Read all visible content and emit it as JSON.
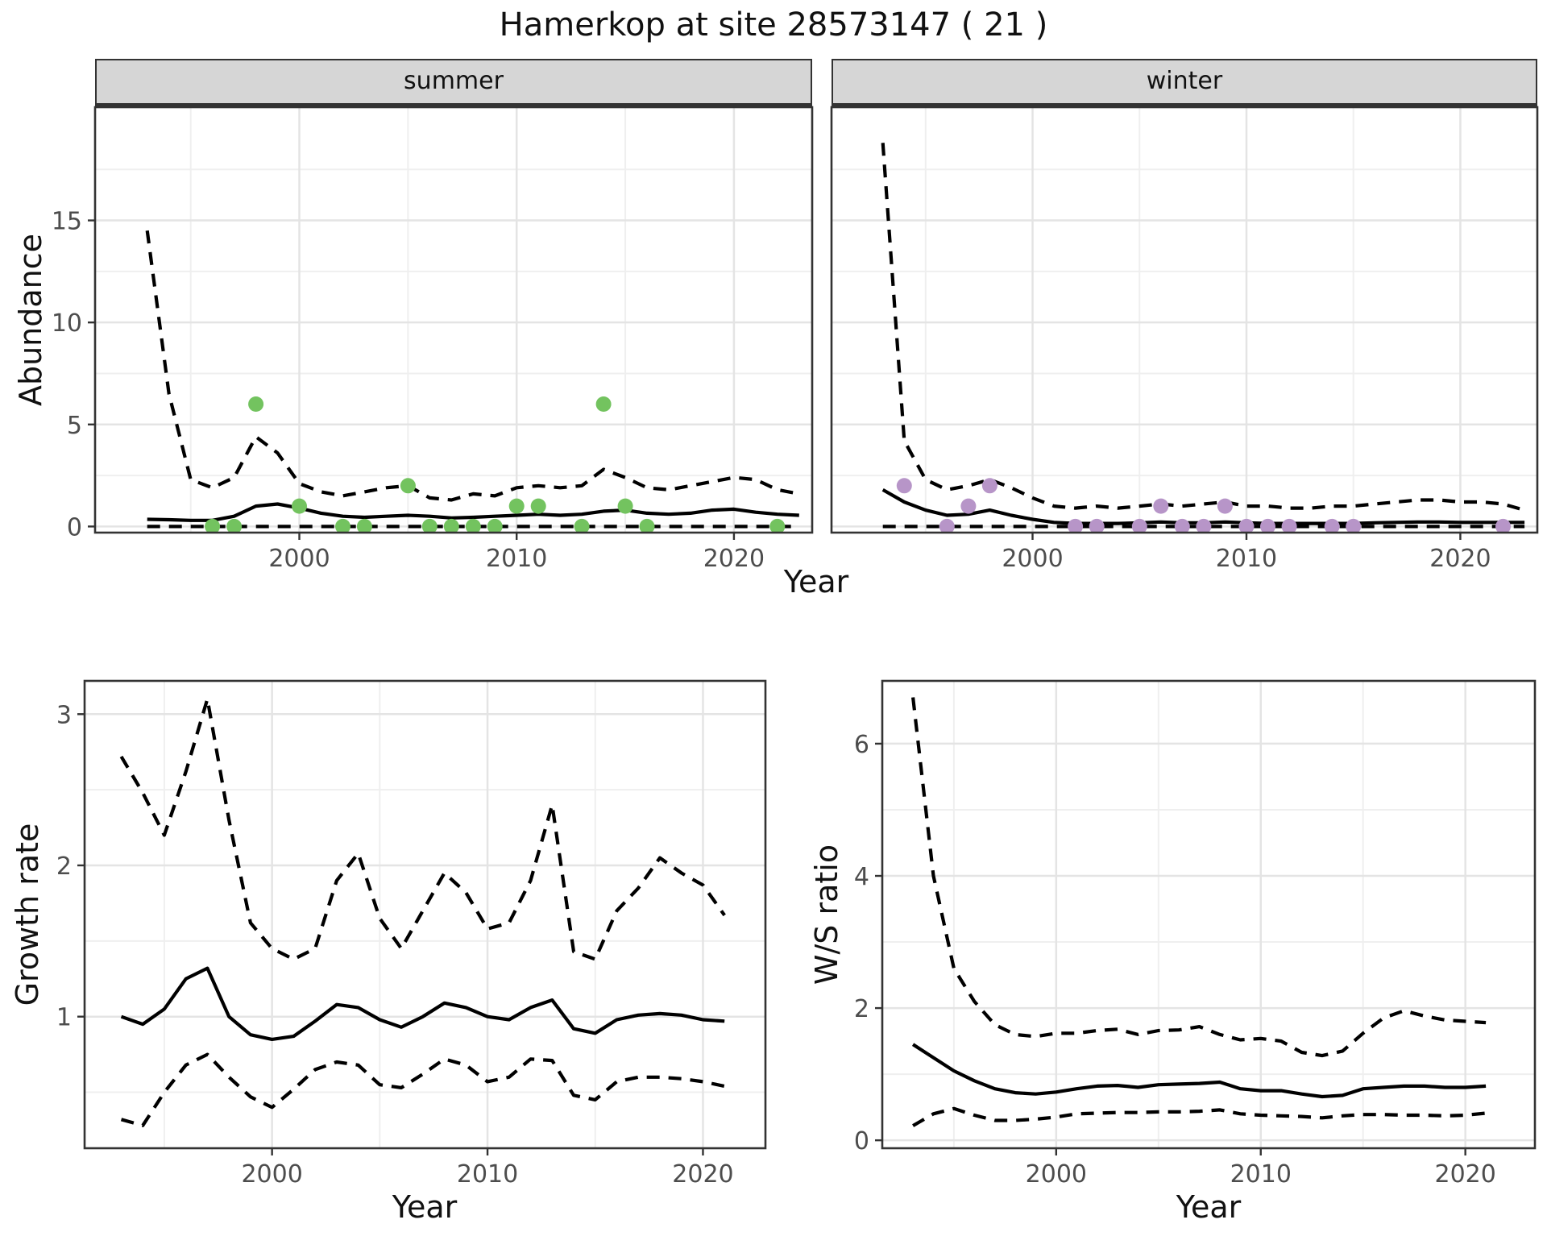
{
  "title": "Hamerkop at site 28573147 ( 21 )",
  "axis_labels": {
    "y_top": "Abundance",
    "x_top": "Year",
    "y_bottom_left": "Growth rate",
    "x_bottom_left": "Year",
    "y_bottom_right": "W/S ratio",
    "x_bottom_right": "Year"
  },
  "facets": {
    "left": "summer",
    "right": "winter"
  },
  "colors": {
    "summer_point": "#73c35f",
    "winter_point": "#b795c8",
    "line": "#000000",
    "grid_major": "#e4e4e4",
    "grid_minor": "#efefef",
    "panel_bg": "#ffffff",
    "panel_border": "#333333",
    "strip_bg": "#d6d6d6",
    "axis_text": "#4d4d4d"
  },
  "chart_data": [
    {
      "id": "abundance-summer",
      "type": "line",
      "facet_label": "summer",
      "xlabel": "Year",
      "ylabel": "Abundance",
      "xlim": [
        1990.6,
        2023.6
      ],
      "ylim": [
        -0.3,
        20.55
      ],
      "x_ticks": {
        "major": [
          2000,
          2010,
          2020
        ],
        "minor": [
          1995,
          2005,
          2015
        ],
        "labels": [
          "2000",
          "2010",
          "2020"
        ]
      },
      "y_ticks": {
        "major": [
          0,
          5,
          10,
          15
        ],
        "minor": [
          2.5,
          7.5,
          12.5,
          17.5
        ],
        "labels": [
          "0",
          "5",
          "10",
          "15"
        ],
        "show_labels": true
      },
      "x": [
        1993,
        1994,
        1995,
        1996,
        1997,
        1998,
        1999,
        2000,
        2001,
        2002,
        2003,
        2004,
        2005,
        2006,
        2007,
        2008,
        2009,
        2010,
        2011,
        2012,
        2013,
        2014,
        2015,
        2016,
        2017,
        2018,
        2019,
        2020,
        2021,
        2022,
        2023
      ],
      "series": [
        {
          "name": "lower_95ci",
          "line": "dashed",
          "values": [
            0,
            0,
            0,
            0,
            0,
            0,
            0,
            0,
            0,
            0,
            0,
            0,
            0,
            0,
            0,
            0,
            0,
            0,
            0,
            0,
            0,
            0,
            0,
            0,
            0,
            0,
            0,
            0,
            0,
            0,
            0
          ]
        },
        {
          "name": "upper_95ci",
          "line": "dashed",
          "values": [
            14.5,
            6.5,
            2.3,
            1.9,
            2.4,
            4.4,
            3.6,
            2.1,
            1.7,
            1.5,
            1.7,
            1.9,
            2.0,
            1.4,
            1.3,
            1.6,
            1.5,
            1.9,
            2.0,
            1.9,
            2.0,
            2.8,
            2.4,
            1.9,
            1.8,
            2.0,
            2.2,
            2.4,
            2.3,
            1.8,
            1.6
          ]
        },
        {
          "name": "median",
          "line": "solid",
          "values": [
            0.35,
            0.33,
            0.3,
            0.3,
            0.5,
            1.0,
            1.1,
            0.9,
            0.65,
            0.5,
            0.45,
            0.5,
            0.55,
            0.5,
            0.42,
            0.45,
            0.5,
            0.55,
            0.6,
            0.55,
            0.6,
            0.75,
            0.8,
            0.65,
            0.6,
            0.65,
            0.8,
            0.85,
            0.7,
            0.6,
            0.55
          ]
        }
      ],
      "points": {
        "name": "observed-abundance-summer",
        "color": "#73c35f",
        "data": [
          [
            1996,
            0
          ],
          [
            1997,
            0
          ],
          [
            1998,
            6
          ],
          [
            2000,
            1
          ],
          [
            2002,
            0
          ],
          [
            2003,
            0
          ],
          [
            2005,
            2
          ],
          [
            2006,
            0
          ],
          [
            2007,
            0
          ],
          [
            2008,
            0
          ],
          [
            2009,
            0
          ],
          [
            2010,
            1
          ],
          [
            2011,
            1
          ],
          [
            2013,
            0
          ],
          [
            2014,
            6
          ],
          [
            2015,
            1
          ],
          [
            2016,
            0
          ],
          [
            2022,
            0
          ]
        ]
      }
    },
    {
      "id": "abundance-winter",
      "type": "line",
      "facet_label": "winter",
      "xlabel": "Year",
      "ylabel": "Abundance",
      "xlim": [
        1990.6,
        2023.6
      ],
      "ylim": [
        -0.3,
        20.55
      ],
      "x_ticks": {
        "major": [
          2000,
          2010,
          2020
        ],
        "minor": [
          1995,
          2005,
          2015
        ],
        "labels": [
          "2000",
          "2010",
          "2020"
        ]
      },
      "y_ticks": {
        "major": [
          0,
          5,
          10,
          15
        ],
        "minor": [
          2.5,
          7.5,
          12.5,
          17.5
        ],
        "labels": [
          "0",
          "5",
          "10",
          "15"
        ],
        "show_labels": false
      },
      "x": [
        1993,
        1994,
        1995,
        1996,
        1997,
        1998,
        1999,
        2000,
        2001,
        2002,
        2003,
        2004,
        2005,
        2006,
        2007,
        2008,
        2009,
        2010,
        2011,
        2012,
        2013,
        2014,
        2015,
        2016,
        2017,
        2018,
        2019,
        2020,
        2021,
        2022,
        2023
      ],
      "series": [
        {
          "name": "lower_95ci",
          "line": "dashed",
          "values": [
            0,
            0,
            0,
            0,
            0,
            0,
            0,
            0,
            0,
            0,
            0,
            0,
            0,
            0,
            0,
            0,
            0,
            0,
            0,
            0,
            0,
            0,
            0,
            0,
            0,
            0,
            0,
            0,
            0,
            0,
            0
          ]
        },
        {
          "name": "upper_95ci",
          "line": "dashed",
          "values": [
            18.8,
            4.2,
            2.3,
            1.8,
            2.0,
            2.3,
            1.9,
            1.4,
            1.0,
            0.9,
            1.0,
            0.9,
            1.0,
            1.1,
            1.0,
            1.1,
            1.2,
            1.0,
            1.0,
            0.9,
            0.9,
            1.0,
            1.0,
            1.1,
            1.2,
            1.3,
            1.3,
            1.2,
            1.2,
            1.1,
            0.8
          ]
        },
        {
          "name": "median",
          "line": "solid",
          "values": [
            1.8,
            1.2,
            0.8,
            0.55,
            0.6,
            0.8,
            0.55,
            0.35,
            0.2,
            0.15,
            0.15,
            0.15,
            0.18,
            0.22,
            0.18,
            0.18,
            0.22,
            0.18,
            0.15,
            0.15,
            0.15,
            0.15,
            0.15,
            0.18,
            0.2,
            0.22,
            0.22,
            0.2,
            0.2,
            0.2,
            0.2
          ]
        }
      ],
      "points": {
        "name": "observed-abundance-winter",
        "color": "#b795c8",
        "data": [
          [
            1994,
            2
          ],
          [
            1996,
            0
          ],
          [
            1997,
            1
          ],
          [
            1998,
            2
          ],
          [
            2002,
            0
          ],
          [
            2003,
            0
          ],
          [
            2005,
            0
          ],
          [
            2006,
            1
          ],
          [
            2007,
            0
          ],
          [
            2008,
            0
          ],
          [
            2009,
            1
          ],
          [
            2010,
            0
          ],
          [
            2011,
            0
          ],
          [
            2012,
            0
          ],
          [
            2014,
            0
          ],
          [
            2015,
            0
          ],
          [
            2022,
            0
          ]
        ]
      }
    },
    {
      "id": "growth-rate",
      "type": "line",
      "xlabel": "Year",
      "ylabel": "Growth rate",
      "xlim": [
        1991.3,
        2022.9
      ],
      "ylim": [
        0.13,
        3.22
      ],
      "x_ticks": {
        "major": [
          2000,
          2010,
          2020
        ],
        "minor": [
          1995,
          2005,
          2015
        ],
        "labels": [
          "2000",
          "2010",
          "2020"
        ]
      },
      "y_ticks": {
        "major": [
          1,
          2,
          3
        ],
        "minor": [
          0.5,
          1.5,
          2.5
        ],
        "labels": [
          "1",
          "2",
          "3"
        ],
        "show_labels": true
      },
      "x": [
        1993,
        1994,
        1995,
        1996,
        1997,
        1998,
        1999,
        2000,
        2001,
        2002,
        2003,
        2004,
        2005,
        2006,
        2007,
        2008,
        2009,
        2010,
        2011,
        2012,
        2013,
        2014,
        2015,
        2016,
        2017,
        2018,
        2019,
        2020,
        2021
      ],
      "series": [
        {
          "name": "lower_95ci",
          "line": "dashed",
          "values": [
            0.32,
            0.28,
            0.5,
            0.68,
            0.75,
            0.6,
            0.47,
            0.4,
            0.52,
            0.65,
            0.7,
            0.68,
            0.55,
            0.53,
            0.62,
            0.72,
            0.68,
            0.57,
            0.6,
            0.72,
            0.71,
            0.48,
            0.45,
            0.57,
            0.6,
            0.6,
            0.59,
            0.57,
            0.54
          ]
        },
        {
          "name": "upper_95ci",
          "line": "dashed",
          "values": [
            2.72,
            2.48,
            2.2,
            2.62,
            3.1,
            2.3,
            1.62,
            1.45,
            1.38,
            1.45,
            1.9,
            2.08,
            1.65,
            1.45,
            1.7,
            1.95,
            1.82,
            1.58,
            1.62,
            1.9,
            2.4,
            1.43,
            1.38,
            1.7,
            1.85,
            2.05,
            1.95,
            1.87,
            1.67
          ]
        },
        {
          "name": "median",
          "line": "solid",
          "values": [
            1.0,
            0.95,
            1.05,
            1.25,
            1.32,
            1.0,
            0.88,
            0.85,
            0.87,
            0.97,
            1.08,
            1.06,
            0.98,
            0.93,
            1.0,
            1.09,
            1.06,
            1.0,
            0.98,
            1.06,
            1.11,
            0.92,
            0.89,
            0.98,
            1.01,
            1.02,
            1.01,
            0.98,
            0.97
          ]
        }
      ]
    },
    {
      "id": "ws-ratio",
      "type": "line",
      "xlabel": "Year",
      "ylabel": "W/S ratio",
      "xlim": [
        1991.5,
        2023.4
      ],
      "ylim": [
        -0.12,
        6.95
      ],
      "x_ticks": {
        "major": [
          2000,
          2010,
          2020
        ],
        "minor": [
          1995,
          2005,
          2015
        ],
        "labels": [
          "2000",
          "2010",
          "2020"
        ]
      },
      "y_ticks": {
        "major": [
          0,
          2,
          4,
          6
        ],
        "minor": [
          1,
          3,
          5
        ],
        "labels": [
          "0",
          "2",
          "4",
          "6"
        ],
        "show_labels": true
      },
      "x": [
        1993,
        1994,
        1995,
        1996,
        1997,
        1998,
        1999,
        2000,
        2001,
        2002,
        2003,
        2004,
        2005,
        2006,
        2007,
        2008,
        2009,
        2010,
        2011,
        2012,
        2013,
        2014,
        2015,
        2016,
        2017,
        2018,
        2019,
        2020,
        2021
      ],
      "series": [
        {
          "name": "lower_95ci",
          "line": "dashed",
          "values": [
            0.22,
            0.4,
            0.48,
            0.38,
            0.3,
            0.3,
            0.32,
            0.35,
            0.4,
            0.41,
            0.42,
            0.42,
            0.43,
            0.43,
            0.44,
            0.46,
            0.4,
            0.38,
            0.37,
            0.36,
            0.34,
            0.37,
            0.39,
            0.39,
            0.38,
            0.38,
            0.37,
            0.38,
            0.41
          ]
        },
        {
          "name": "upper_95ci",
          "line": "dashed",
          "values": [
            6.7,
            4.0,
            2.6,
            2.1,
            1.75,
            1.6,
            1.57,
            1.62,
            1.62,
            1.66,
            1.68,
            1.6,
            1.66,
            1.67,
            1.72,
            1.6,
            1.52,
            1.54,
            1.5,
            1.33,
            1.28,
            1.35,
            1.62,
            1.85,
            1.96,
            1.88,
            1.82,
            1.8,
            1.78
          ]
        },
        {
          "name": "median",
          "line": "solid",
          "values": [
            1.45,
            1.25,
            1.05,
            0.9,
            0.78,
            0.72,
            0.7,
            0.73,
            0.78,
            0.82,
            0.83,
            0.8,
            0.84,
            0.85,
            0.86,
            0.88,
            0.78,
            0.75,
            0.75,
            0.7,
            0.66,
            0.68,
            0.78,
            0.8,
            0.82,
            0.82,
            0.8,
            0.8,
            0.82
          ]
        }
      ]
    }
  ]
}
